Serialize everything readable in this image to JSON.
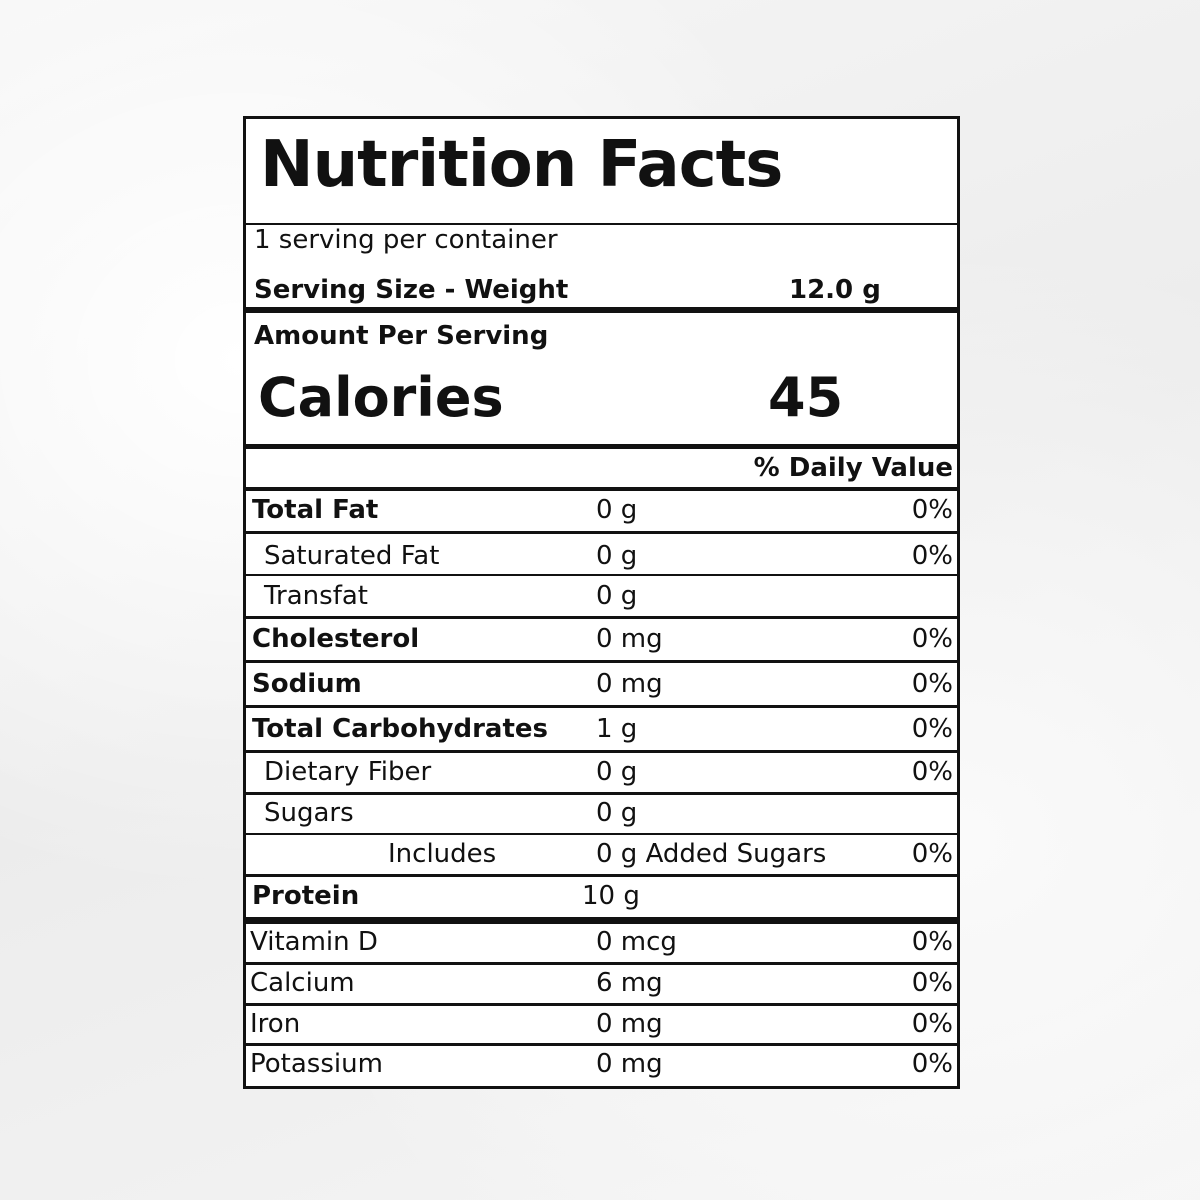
{
  "title": "Nutrition Facts",
  "servings_per_container": "1 serving per container",
  "serving_size_label": "Serving Size - Weight",
  "serving_size_value": "12.0 g",
  "amount_per_serving": "Amount Per Serving",
  "calories_label": "Calories",
  "calories_value": "45",
  "daily_value_header": "% Daily Value",
  "nutrients": [
    {
      "name": "Total Fat",
      "amount": "0 g",
      "pct": "0%"
    },
    {
      "name": "Saturated Fat",
      "amount": "0 g",
      "pct": "0%"
    },
    {
      "name": "Transfat",
      "amount": "0 g",
      "pct": ""
    },
    {
      "name": "Cholesterol",
      "amount": "0 mg",
      "pct": "0%"
    },
    {
      "name": "Sodium",
      "amount": "0 mg",
      "pct": "0%"
    },
    {
      "name": "Total Carbohydrates",
      "amount": "1 g",
      "pct": "0%"
    },
    {
      "name": "Dietary Fiber",
      "amount": "0 g",
      "pct": "0%"
    },
    {
      "name": "Sugars",
      "amount": "0 g",
      "pct": ""
    },
    {
      "name": "Includes",
      "amount": "0 g Added Sugars",
      "pct": "0%"
    },
    {
      "name": "Protein",
      "amount": "10 g",
      "pct": ""
    }
  ],
  "vitamins": [
    {
      "name": "Vitamin D",
      "amount": "0 mcg",
      "pct": "0%"
    },
    {
      "name": "Calcium",
      "amount": "6 mg",
      "pct": "0%"
    },
    {
      "name": "Iron",
      "amount": "0 mg",
      "pct": "0%"
    },
    {
      "name": "Potassium",
      "amount": "0 mg",
      "pct": "0%"
    }
  ]
}
